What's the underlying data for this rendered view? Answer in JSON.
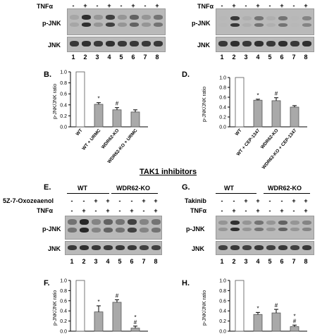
{
  "common": {
    "tnf_label": "TNFα",
    "pjnk_label": "p-JNK",
    "jnk_label": "JNK",
    "lanes": [
      "1",
      "2",
      "3",
      "4",
      "5",
      "6",
      "7",
      "8"
    ],
    "plus": "+",
    "minus": "-",
    "ylabel": "p-JNK/JNK ratio"
  },
  "section_title": "TAK1 inhibitors",
  "panelA": {
    "tnf": [
      "-",
      "+",
      "-",
      "+",
      "-",
      "+",
      "-",
      "+"
    ]
  },
  "panelC": {
    "tnf": [
      "-",
      "+",
      "-",
      "+",
      "-",
      "+",
      "-",
      "+"
    ]
  },
  "panelB": {
    "letter": "B.",
    "categories": [
      "WT",
      "WT + URMC",
      "WDR62-KO",
      "WDR62-KO + URMC"
    ],
    "values": [
      1.0,
      0.41,
      0.31,
      0.27
    ],
    "errors": [
      0,
      0.03,
      0.04,
      0.04
    ],
    "marks": [
      "",
      "*",
      "#",
      ""
    ],
    "ticks": [
      "0.0",
      "0.2",
      "0.4",
      "0.6",
      "0.8",
      "1.0"
    ]
  },
  "panelD": {
    "letter": "D.",
    "categories": [
      "WT",
      "WT + CEP-1347",
      "WDR62-KO",
      "WDR62-KO + CEP-1347"
    ],
    "values": [
      1.0,
      0.54,
      0.53,
      0.4
    ],
    "errors": [
      0,
      0.02,
      0.06,
      0.03
    ],
    "marks": [
      "",
      "*",
      "#",
      ""
    ],
    "ticks": [
      "0.0",
      "0.2",
      "0.4",
      "0.6",
      "0.8",
      "1.0"
    ]
  },
  "panelE": {
    "letter": "E.",
    "wt": "WT",
    "ko": "WDR62-KO",
    "inhibitor": "5Z-7-Oxozeaenol",
    "inh": [
      "-",
      "-",
      "+",
      "+",
      "-",
      "-",
      "+",
      "+"
    ],
    "tnf": [
      "-",
      "+",
      "-",
      "+",
      "-",
      "+",
      "-",
      "+"
    ]
  },
  "panelG": {
    "letter": "G.",
    "wt": "WT",
    "ko": "WDR62-KO",
    "inhibitor": "Takinib",
    "inh": [
      "-",
      "-",
      "+",
      "+",
      "-",
      "-",
      "+",
      "+"
    ],
    "tnf": [
      "-",
      "+",
      "-",
      "+",
      "-",
      "+",
      "-",
      "+"
    ]
  },
  "panelF": {
    "letter": "F.",
    "values": [
      1.0,
      0.38,
      0.57,
      0.06
    ],
    "errors": [
      0,
      0.12,
      0.05,
      0.04
    ],
    "marks": [
      "",
      "*",
      "#",
      "*\n#"
    ],
    "ticks": [
      "0.0",
      "0.2",
      "0.4",
      "0.6",
      "0.8",
      "1.0"
    ]
  },
  "panelH": {
    "letter": "H.",
    "values": [
      1.0,
      0.33,
      0.36,
      0.09
    ],
    "errors": [
      0,
      0.04,
      0.07,
      0.03
    ],
    "marks": [
      "",
      "*",
      "#",
      "*\n#"
    ],
    "ticks": [
      "0.0",
      "0.2",
      "0.4",
      "0.6",
      "0.8",
      "1.0"
    ]
  },
  "chart_data": [
    {
      "type": "bar",
      "categories": [
        "WT",
        "WT + URMC",
        "WDR62-KO",
        "WDR62-KO + URMC"
      ],
      "values": [
        1.0,
        0.41,
        0.31,
        0.27
      ],
      "ylabel": "p-JNK/JNK ratio",
      "ylim": [
        0,
        1.0
      ]
    },
    {
      "type": "bar",
      "categories": [
        "WT",
        "WT + CEP-1347",
        "WDR62-KO",
        "WDR62-KO + CEP-1347"
      ],
      "values": [
        1.0,
        0.54,
        0.53,
        0.4
      ],
      "ylabel": "p-JNK/JNK ratio",
      "ylim": [
        0,
        1.0
      ]
    },
    {
      "type": "bar",
      "categories": [
        "",
        "",
        "",
        ""
      ],
      "values": [
        1.0,
        0.38,
        0.57,
        0.06
      ],
      "ylabel": "p-JNK/JNK ratio",
      "ylim": [
        0,
        1.0
      ]
    },
    {
      "type": "bar",
      "categories": [
        "",
        "",
        "",
        ""
      ],
      "values": [
        1.0,
        0.33,
        0.36,
        0.09
      ],
      "ylabel": "p-JNK/JNK ratio",
      "ylim": [
        0,
        1.0
      ]
    }
  ]
}
